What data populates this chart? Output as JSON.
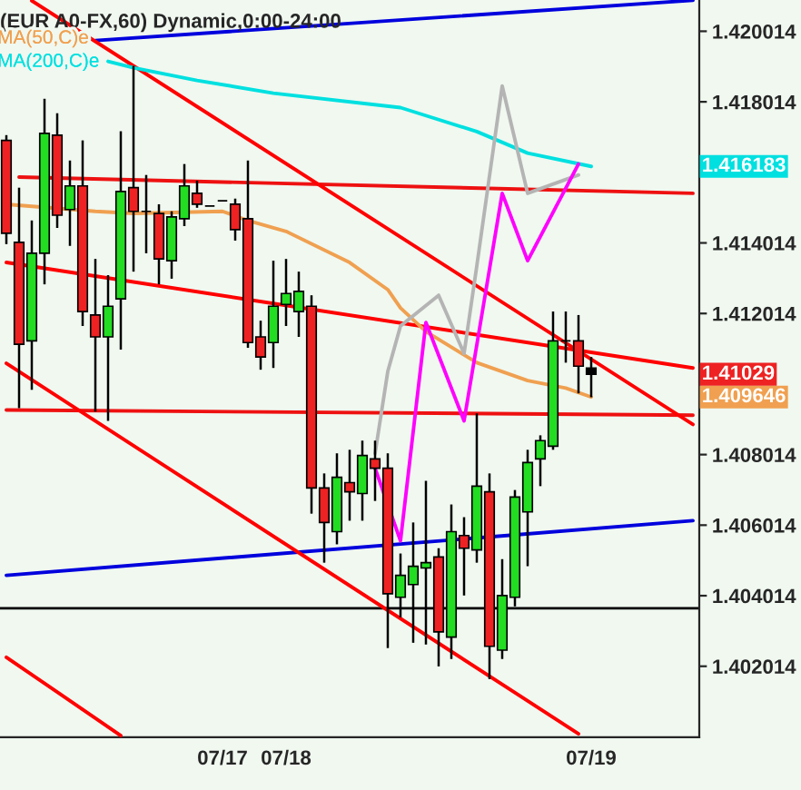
{
  "chart_data": {
    "type": "candlestick",
    "title": "(EUR A0-FX,60) Dynamic,0:00-24:00",
    "categories": [
      null,
      null,
      null,
      null,
      null,
      null,
      null,
      null,
      null,
      null,
      null,
      null,
      null,
      null,
      null,
      null,
      null,
      "07/17",
      null,
      null,
      null,
      null,
      "07/18",
      null,
      null,
      null,
      null,
      null,
      null,
      null,
      null,
      null,
      null,
      null,
      null,
      null,
      null,
      null,
      null,
      null,
      null,
      null,
      null,
      null,
      null,
      null,
      "07/19",
      null,
      null,
      null,
      null,
      null,
      null,
      null,
      null
    ],
    "ohlc": [
      [
        1.41692,
        1.41707,
        1.41398,
        1.41429
      ],
      [
        1.41403,
        1.41558,
        1.40933,
        1.41114
      ],
      [
        1.41124,
        1.41465,
        1.40985,
        1.41372
      ],
      [
        1.41372,
        1.4181,
        1.41284,
        1.41712
      ],
      [
        1.41707,
        1.41769,
        1.41444,
        1.4148
      ],
      [
        1.41496,
        1.41635,
        1.41393,
        1.41563
      ],
      [
        1.41563,
        1.41692,
        1.41166,
        1.41207
      ],
      [
        1.41197,
        1.41356,
        1.40923,
        1.41135
      ],
      [
        1.41135,
        1.4131,
        1.40897,
        1.41222
      ],
      [
        1.41243,
        1.41718,
        1.41099,
        1.41547
      ],
      [
        1.41558,
        1.41903,
        1.4132,
        1.41491
      ],
      [
        1.41491,
        1.41594,
        1.41372,
        1.41491
      ],
      [
        1.41485,
        1.41511,
        1.41284,
        1.41356
      ],
      [
        1.41351,
        1.41491,
        1.413,
        1.41475
      ],
      [
        1.4147,
        1.41625,
        1.41449,
        1.41563
      ],
      [
        1.41542,
        1.41578,
        1.41501,
        1.41511
      ],
      [
        1.41506,
        1.41506,
        1.41506,
        1.41506
      ],
      [
        1.41521,
        1.41521,
        1.41521,
        1.41521
      ],
      [
        1.41511,
        1.41527,
        1.41408,
        1.41439
      ],
      [
        1.4147,
        1.41635,
        1.41104,
        1.41119
      ],
      [
        1.41135,
        1.41181,
        1.41042,
        1.41078
      ],
      [
        1.41119,
        1.41351,
        1.41047,
        1.41222
      ],
      [
        1.41227,
        1.41356,
        1.41166,
        1.41258
      ],
      [
        1.41207,
        1.4132,
        1.41135,
        1.41264
      ],
      [
        1.41222,
        1.41253,
        1.40634,
        1.40707
      ],
      [
        1.40707,
        1.40748,
        1.40495,
        1.40609
      ],
      [
        1.40583,
        1.40805,
        1.40547,
        1.40737
      ],
      [
        1.40722,
        1.40815,
        1.40614,
        1.40696
      ],
      [
        1.40691,
        1.40841,
        1.40614,
        1.40799
      ],
      [
        1.40789,
        1.40841,
        1.4067,
        1.40763
      ],
      [
        1.40763,
        1.40805,
        1.40253,
        1.40407
      ],
      [
        1.40397,
        1.40521,
        1.4034,
        1.40459
      ],
      [
        1.40433,
        1.40609,
        1.40268,
        1.40485
      ],
      [
        1.4048,
        1.40727,
        1.40263,
        1.40495
      ],
      [
        1.40511,
        1.40536,
        1.40201,
        1.40299
      ],
      [
        1.40284,
        1.4066,
        1.40222,
        1.40583
      ],
      [
        1.40572,
        1.40624,
        1.40402,
        1.40536
      ],
      [
        1.40531,
        1.40918,
        1.40495,
        1.40712
      ],
      [
        1.40696,
        1.40748,
        1.40165,
        1.40258
      ],
      [
        1.40247,
        1.40505,
        1.40222,
        1.40402
      ],
      [
        1.40397,
        1.40701,
        1.40371,
        1.40681
      ],
      [
        1.40639,
        1.40815,
        1.40485,
        1.40779
      ],
      [
        1.40789,
        1.40856,
        1.40712,
        1.40841
      ],
      [
        1.40825,
        1.41207,
        1.40815,
        1.41124
      ],
      [
        1.41124,
        1.41207,
        1.41062,
        1.41124
      ],
      [
        1.41124,
        1.41197,
        1.40975,
        1.41052
      ],
      [
        1.41047,
        1.41078,
        1.40964,
        1.41029
      ],
      null,
      null,
      null,
      null,
      null,
      null,
      null,
      null
    ],
    "colors": [
      "#ee2222",
      "#ee2222",
      "#22dd22",
      "#22dd22",
      "#ee2222",
      "#22dd22",
      "#ee2222",
      "#ee2222",
      "#22dd22",
      "#22dd22",
      "#ee2222",
      "#000000",
      "#ee2222",
      "#22dd22",
      "#22dd22",
      "#ee2222",
      "#000000",
      "#000000",
      "#ee2222",
      "#ee2222",
      "#ee2222",
      "#22dd22",
      "#22dd22",
      "#22dd22",
      "#ee2222",
      "#ee2222",
      "#22dd22",
      "#ee2222",
      "#22dd22",
      "#ee2222",
      "#ee2222",
      "#22dd22",
      "#22dd22",
      "#22dd22",
      "#ee2222",
      "#22dd22",
      "#ee2222",
      "#22dd22",
      "#ee2222",
      "#22dd22",
      "#22dd22",
      "#22dd22",
      "#22dd22",
      "#22dd22",
      "#000000",
      "#ee2222",
      "#000000",
      null,
      null,
      null,
      null,
      null,
      null,
      null,
      null
    ],
    "series": [
      {
        "type": "line",
        "color": "#ee1111",
        "values": [
          null,
          1.41588,
          null,
          null,
          null,
          null,
          null,
          null,
          null,
          null,
          null,
          null,
          null,
          null,
          null,
          null,
          null,
          null,
          null,
          null,
          null,
          null,
          null,
          null,
          null,
          null,
          null,
          null,
          null,
          null,
          null,
          null,
          null,
          null,
          null,
          null,
          null,
          null,
          null,
          null,
          null,
          null,
          null,
          null,
          null,
          null,
          null,
          null,
          null,
          null,
          null,
          null,
          null,
          null,
          1.41542
        ]
      },
      {
        "type": "line",
        "color": "#ee1111",
        "values": [
          1.40928,
          null,
          null,
          null,
          null,
          null,
          null,
          null,
          null,
          null,
          null,
          null,
          null,
          null,
          null,
          null,
          null,
          null,
          null,
          null,
          null,
          null,
          null,
          null,
          null,
          null,
          null,
          null,
          null,
          null,
          null,
          null,
          null,
          null,
          null,
          null,
          null,
          null,
          null,
          null,
          null,
          null,
          null,
          null,
          null,
          null,
          null,
          null,
          null,
          null,
          null,
          null,
          null,
          null,
          1.40913
        ]
      },
      {
        "type": "line",
        "color": "#0000dd",
        "values": [
          1.40459,
          null,
          null,
          null,
          null,
          null,
          null,
          null,
          null,
          null,
          null,
          null,
          null,
          null,
          null,
          null,
          null,
          null,
          null,
          null,
          null,
          null,
          null,
          null,
          null,
          null,
          null,
          null,
          null,
          null,
          null,
          null,
          null,
          null,
          null,
          null,
          null,
          null,
          null,
          null,
          null,
          null,
          null,
          null,
          null,
          null,
          null,
          null,
          null,
          null,
          null,
          null,
          null,
          null,
          1.40614
        ]
      },
      {
        "type": "line",
        "color": "#0000dd",
        "values": [
          null,
          null,
          null,
          null,
          null,
          null,
          null,
          1.41975,
          null,
          null,
          null,
          null,
          null,
          null,
          null,
          null,
          null,
          null,
          null,
          null,
          null,
          null,
          null,
          null,
          null,
          null,
          null,
          null,
          null,
          null,
          null,
          null,
          null,
          null,
          null,
          null,
          null,
          null,
          null,
          null,
          null,
          null,
          null,
          null,
          null,
          null,
          null,
          null,
          null,
          null,
          null,
          null,
          null,
          null,
          1.42089
        ]
      },
      {
        "type": "line",
        "color": "#ff0000",
        "values": [
          null,
          null,
          1.42088,
          null,
          null,
          null,
          null,
          null,
          null,
          null,
          null,
          null,
          null,
          null,
          null,
          null,
          null,
          null,
          null,
          null,
          null,
          null,
          null,
          null,
          null,
          null,
          null,
          null,
          null,
          null,
          null,
          null,
          null,
          null,
          null,
          null,
          null,
          null,
          null,
          null,
          null,
          null,
          null,
          null,
          null,
          null,
          null,
          null,
          null,
          null,
          null,
          null,
          null,
          null,
          1.40887
        ]
      },
      {
        "type": "line",
        "color": "#ff0000",
        "values": [
          1.41346,
          null,
          null,
          null,
          null,
          null,
          null,
          null,
          null,
          null,
          null,
          null,
          null,
          null,
          null,
          null,
          null,
          null,
          null,
          null,
          null,
          null,
          null,
          null,
          null,
          null,
          null,
          null,
          null,
          null,
          null,
          null,
          null,
          null,
          null,
          null,
          null,
          null,
          null,
          null,
          null,
          null,
          null,
          null,
          null,
          null,
          null,
          null,
          null,
          null,
          null,
          null,
          null,
          null,
          1.41047
        ]
      },
      {
        "type": "line",
        "color": "#ff0000",
        "values": [
          1.4106,
          null,
          null,
          null,
          null,
          null,
          null,
          null,
          null,
          null,
          null,
          null,
          null,
          null,
          null,
          null,
          null,
          null,
          null,
          null,
          null,
          null,
          null,
          null,
          null,
          null,
          null,
          null,
          null,
          null,
          null,
          null,
          null,
          null,
          null,
          null,
          null,
          null,
          null,
          null,
          null,
          null,
          null,
          null,
          null,
          1.4001,
          null,
          null,
          null,
          null,
          null,
          null,
          null,
          null,
          null
        ]
      },
      {
        "type": "line",
        "color": "#ff0000",
        "values": [
          1.40227,
          null,
          null,
          null,
          null,
          null,
          null,
          null,
          null,
          1.40005,
          null,
          null,
          null,
          null,
          null,
          null,
          null,
          null,
          null,
          null,
          null,
          null,
          null,
          null,
          null,
          null,
          null,
          null,
          null,
          null,
          null,
          null,
          null,
          null,
          null,
          null,
          null,
          null,
          null,
          null,
          null,
          null,
          null,
          null,
          null,
          null,
          null,
          null,
          null,
          null,
          null,
          null,
          null,
          null,
          null
        ]
      },
      {
        "type": "line",
        "name": "MA(50,C)e",
        "color": "#f0a050",
        "values": [
          1.41511,
          null,
          null,
          null,
          null,
          null,
          null,
          1.41491,
          null,
          null,
          1.41485,
          null,
          null,
          null,
          null,
          null,
          null,
          1.41491,
          null,
          1.41465,
          null,
          null,
          1.41434,
          null,
          null,
          null,
          null,
          1.41346,
          null,
          null,
          1.41269,
          1.41217,
          null,
          1.4115,
          null,
          null,
          null,
          1.41062,
          null,
          null,
          null,
          1.41011,
          null,
          null,
          1.4099,
          null,
          1.409646,
          null,
          null,
          null,
          null,
          null,
          null,
          null,
          null
        ]
      },
      {
        "type": "line",
        "name": "MA(200,C)e",
        "color": "#00e0e0",
        "values": [
          null,
          null,
          null,
          null,
          null,
          null,
          null,
          null,
          1.41916,
          null,
          1.41898,
          null,
          null,
          null,
          null,
          1.41862,
          null,
          null,
          null,
          null,
          null,
          1.41826,
          null,
          null,
          null,
          null,
          null,
          null,
          null,
          null,
          null,
          1.41785,
          null,
          null,
          null,
          null,
          null,
          1.41717,
          null,
          null,
          null,
          1.41656,
          null,
          null,
          null,
          null,
          1.416183,
          null,
          null,
          null,
          null,
          null,
          null,
          null,
          null
        ]
      },
      {
        "type": "line",
        "color": "#b4b4b4",
        "values": [
          null,
          null,
          null,
          null,
          null,
          null,
          null,
          null,
          null,
          null,
          null,
          null,
          null,
          null,
          null,
          null,
          null,
          null,
          null,
          null,
          null,
          null,
          null,
          null,
          null,
          null,
          null,
          null,
          null,
          1.40805,
          1.41037,
          1.41166,
          null,
          null,
          1.41253,
          null,
          1.41088,
          1.41336,
          null,
          1.41846,
          null,
          1.41542,
          null,
          null,
          null,
          1.41594,
          null,
          null,
          null,
          null,
          null,
          null,
          null,
          null,
          null
        ]
      },
      {
        "type": "line",
        "color": "#ff00ff",
        "values": [
          null,
          null,
          null,
          null,
          null,
          null,
          null,
          null,
          null,
          null,
          null,
          null,
          null,
          null,
          null,
          null,
          null,
          null,
          null,
          null,
          null,
          null,
          null,
          null,
          null,
          null,
          null,
          null,
          null,
          1.40763,
          null,
          1.40557,
          null,
          1.41176,
          null,
          null,
          1.40897,
          null,
          null,
          1.41542,
          null,
          1.41351,
          null,
          null,
          null,
          1.41625,
          null,
          null,
          null,
          null,
          null,
          null,
          null,
          null,
          null
        ]
      }
    ],
    "ref_lines": [
      {
        "axis": "y",
        "value": 1.40366,
        "color": "#000000"
      }
    ],
    "annotations": [
      "1.409646",
      "1.416183",
      "1.41029"
    ],
    "ylim": [
      1.4,
      1.4209
    ],
    "yticks": [
      1.402014,
      1.404014,
      1.406014,
      1.408014,
      1.412014,
      1.414014,
      1.418014,
      1.420014
    ],
    "legend": "top left"
  }
}
